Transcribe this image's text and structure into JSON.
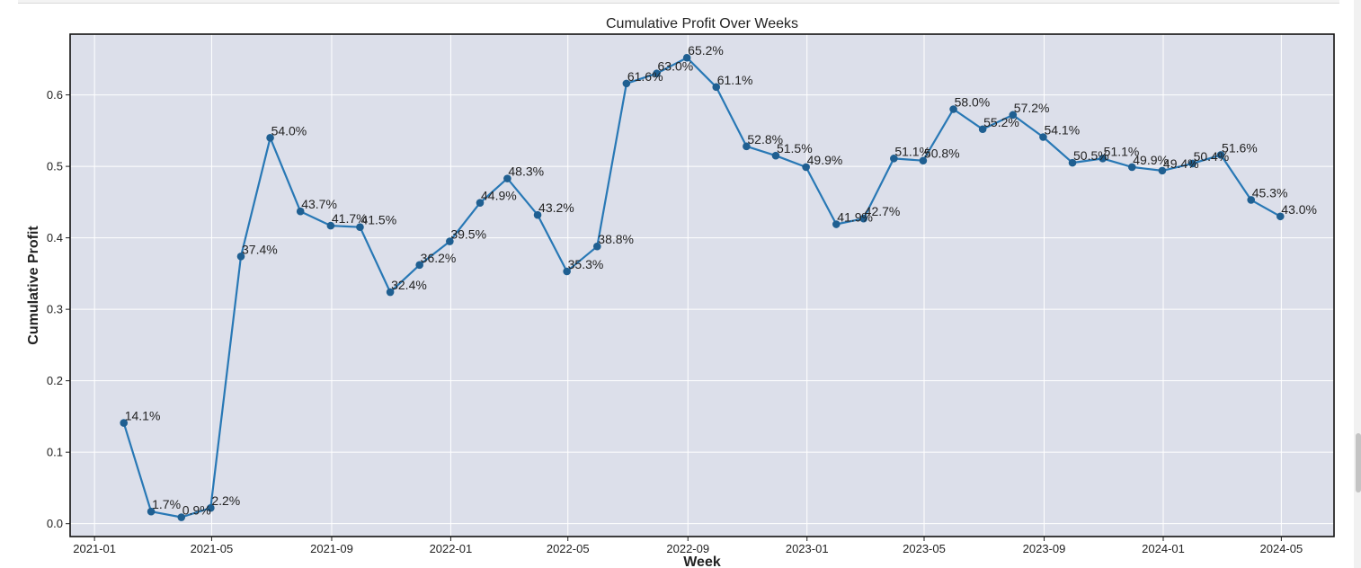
{
  "chart_data": {
    "type": "line",
    "title": "Cumulative Profit Over Weeks",
    "xlabel": "Week",
    "ylabel": "Cumulative Profit",
    "xlim": [
      "2020-12-07",
      "2024-06-24"
    ],
    "ylim": [
      -0.018,
      0.685
    ],
    "grid": true,
    "colors": {
      "line": "#2878b5",
      "marker": "#1f5f91",
      "plot_bg": "#dcdfea",
      "grid": "#ffffff"
    },
    "x_ticks": [
      {
        "x": "2021-01-01",
        "label": "2021-01"
      },
      {
        "x": "2021-05-01",
        "label": "2021-05"
      },
      {
        "x": "2021-09-01",
        "label": "2021-09"
      },
      {
        "x": "2022-01-01",
        "label": "2022-01"
      },
      {
        "x": "2022-05-01",
        "label": "2022-05"
      },
      {
        "x": "2022-09-01",
        "label": "2022-09"
      },
      {
        "x": "2023-01-01",
        "label": "2023-01"
      },
      {
        "x": "2023-05-01",
        "label": "2023-05"
      },
      {
        "x": "2023-09-01",
        "label": "2023-09"
      },
      {
        "x": "2024-01-01",
        "label": "2024-01"
      },
      {
        "x": "2024-05-01",
        "label": "2024-05"
      }
    ],
    "y_ticks": [
      {
        "y": 0.0,
        "label": "0.0"
      },
      {
        "y": 0.1,
        "label": "0.1"
      },
      {
        "y": 0.2,
        "label": "0.2"
      },
      {
        "y": 0.3,
        "label": "0.3"
      },
      {
        "y": 0.4,
        "label": "0.4"
      },
      {
        "y": 0.5,
        "label": "0.5"
      },
      {
        "y": 0.6,
        "label": "0.6"
      }
    ],
    "points": [
      {
        "x": "2021-01-31",
        "y": 0.141,
        "label": "14.1%"
      },
      {
        "x": "2021-02-28",
        "y": 0.017,
        "label": "1.7%"
      },
      {
        "x": "2021-03-31",
        "y": 0.009,
        "label": "0.9%"
      },
      {
        "x": "2021-04-30",
        "y": 0.022,
        "label": "2.2%"
      },
      {
        "x": "2021-05-31",
        "y": 0.374,
        "label": "37.4%"
      },
      {
        "x": "2021-06-30",
        "y": 0.54,
        "label": "54.0%"
      },
      {
        "x": "2021-07-31",
        "y": 0.437,
        "label": "43.7%"
      },
      {
        "x": "2021-08-31",
        "y": 0.417,
        "label": "41.7%"
      },
      {
        "x": "2021-09-30",
        "y": 0.415,
        "label": "41.5%"
      },
      {
        "x": "2021-10-31",
        "y": 0.324,
        "label": "32.4%"
      },
      {
        "x": "2021-11-30",
        "y": 0.362,
        "label": "36.2%"
      },
      {
        "x": "2021-12-31",
        "y": 0.395,
        "label": "39.5%"
      },
      {
        "x": "2022-01-31",
        "y": 0.449,
        "label": "44.9%"
      },
      {
        "x": "2022-02-28",
        "y": 0.483,
        "label": "48.3%"
      },
      {
        "x": "2022-03-31",
        "y": 0.432,
        "label": "43.2%"
      },
      {
        "x": "2022-04-30",
        "y": 0.353,
        "label": "35.3%"
      },
      {
        "x": "2022-05-31",
        "y": 0.388,
        "label": "38.8%"
      },
      {
        "x": "2022-06-30",
        "y": 0.616,
        "label": "61.6%"
      },
      {
        "x": "2022-07-31",
        "y": 0.63,
        "label": "63.0%"
      },
      {
        "x": "2022-08-31",
        "y": 0.652,
        "label": "65.2%"
      },
      {
        "x": "2022-09-30",
        "y": 0.611,
        "label": "61.1%"
      },
      {
        "x": "2022-10-31",
        "y": 0.528,
        "label": "52.8%"
      },
      {
        "x": "2022-11-30",
        "y": 0.515,
        "label": "51.5%"
      },
      {
        "x": "2022-12-31",
        "y": 0.499,
        "label": "49.9%"
      },
      {
        "x": "2023-01-31",
        "y": 0.419,
        "label": "41.9%"
      },
      {
        "x": "2023-02-28",
        "y": 0.427,
        "label": "42.7%"
      },
      {
        "x": "2023-03-31",
        "y": 0.511,
        "label": "51.1%"
      },
      {
        "x": "2023-04-30",
        "y": 0.508,
        "label": "50.8%"
      },
      {
        "x": "2023-05-31",
        "y": 0.58,
        "label": "58.0%"
      },
      {
        "x": "2023-06-30",
        "y": 0.552,
        "label": "55.2%"
      },
      {
        "x": "2023-07-31",
        "y": 0.572,
        "label": "57.2%"
      },
      {
        "x": "2023-08-31",
        "y": 0.541,
        "label": "54.1%"
      },
      {
        "x": "2023-09-30",
        "y": 0.505,
        "label": "50.5%"
      },
      {
        "x": "2023-10-31",
        "y": 0.511,
        "label": "51.1%"
      },
      {
        "x": "2023-11-30",
        "y": 0.499,
        "label": "49.9%"
      },
      {
        "x": "2023-12-31",
        "y": 0.494,
        "label": "49.4%"
      },
      {
        "x": "2024-01-31",
        "y": 0.504,
        "label": "50.4%"
      },
      {
        "x": "2024-02-29",
        "y": 0.516,
        "label": "51.6%"
      },
      {
        "x": "2024-03-31",
        "y": 0.453,
        "label": "45.3%"
      },
      {
        "x": "2024-04-30",
        "y": 0.43,
        "label": "43.0%"
      }
    ]
  }
}
